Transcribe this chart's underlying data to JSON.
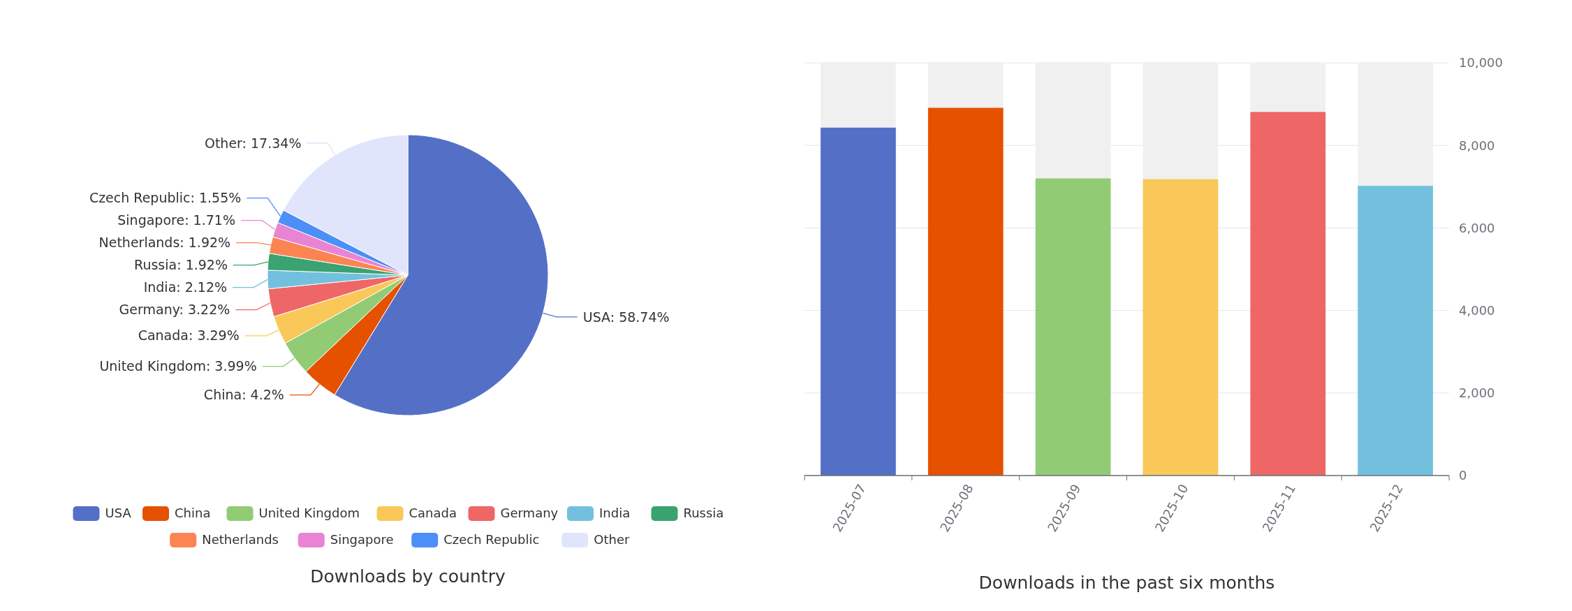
{
  "chart_data": [
    {
      "type": "pie",
      "title": "Downloads by country",
      "categories": [
        "USA",
        "China",
        "United Kingdom",
        "Canada",
        "Germany",
        "India",
        "Russia",
        "Netherlands",
        "Singapore",
        "Czech Republic",
        "Other"
      ],
      "values": [
        58.74,
        4.2,
        3.99,
        3.29,
        3.22,
        2.12,
        1.92,
        1.92,
        1.71,
        1.55,
        17.34
      ],
      "colors": [
        "#5470c6",
        "#e65100",
        "#91cc75",
        "#fac858",
        "#ee6666",
        "#73c0de",
        "#3ba272",
        "#fc8452",
        "#e983d4",
        "#4c8ff7",
        "#e1e5fc"
      ],
      "value_labels": [
        "USA: 58.74%",
        "China: 4.2%",
        "United Kingdom: 3.99%",
        "Canada: 3.29%",
        "Germany: 3.22%",
        "India: 2.12%",
        "Russia: 1.92%",
        "Netherlands: 1.92%",
        "Singapore: 1.71%",
        "Czech Republic: 1.55%",
        "Other: 17.34%"
      ],
      "legend": "bottom"
    },
    {
      "type": "bar",
      "title": "Downloads in the past six months",
      "categories": [
        "2025-07",
        "2025-08",
        "2025-09",
        "2025-10",
        "2025-11",
        "2025-12"
      ],
      "values": [
        8430,
        8910,
        7200,
        7180,
        8810,
        7020
      ],
      "colors": [
        "#5470c6",
        "#e65100",
        "#91cc75",
        "#fac858",
        "#ee6666",
        "#73c0de"
      ],
      "ylim": [
        0,
        10000
      ],
      "yticks": [
        0,
        {
          "value": 2000,
          "label": "2,000"
        },
        {
          "value": 4000,
          "label": "4,000"
        },
        {
          "value": 6000,
          "label": "6,000"
        },
        {
          "value": 8000,
          "label": "8,000"
        },
        {
          "value": 10000,
          "label": "10,000"
        }
      ],
      "grid": "y"
    }
  ]
}
